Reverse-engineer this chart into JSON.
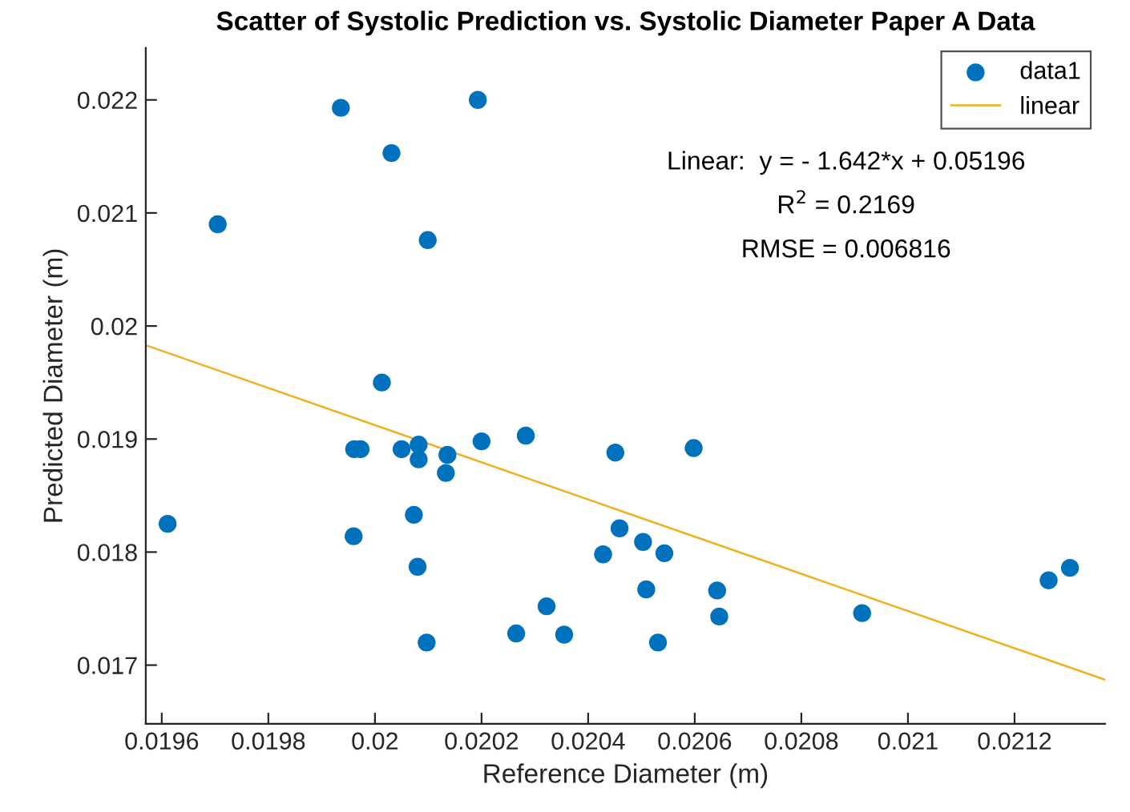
{
  "chart_data": {
    "type": "scatter",
    "title": "Scatter of Systolic Prediction vs. Systolic Diameter Paper A Data",
    "xlabel": "Reference Diameter (m)",
    "ylabel": "Predicted Diameter (m)",
    "annotations": [
      "Linear:  y = - 1.642*x + 0.05196",
      "R$^{2}$ = 0.2169",
      "RMSE = 0.006816"
    ],
    "series": [
      {
        "name": "data1",
        "color": "#0072bd",
        "marker": "circle",
        "x": [
          0.019611,
          0.019705,
          0.019936,
          0.020031,
          0.020193,
          0.020099,
          0.020013,
          0.019961,
          0.019973,
          0.02005,
          0.020082,
          0.020082,
          0.020136,
          0.020133,
          0.0202,
          0.020283,
          0.01996,
          0.020073,
          0.02008,
          0.020097,
          0.020265,
          0.020322,
          0.020355,
          0.020428,
          0.020451,
          0.020598,
          0.020459,
          0.020503,
          0.020543,
          0.020509,
          0.020642,
          0.020646,
          0.020531,
          0.020914,
          0.021264,
          0.021304
        ],
        "values": [
          0.01825,
          0.0209,
          0.02193,
          0.02153,
          0.022,
          0.02076,
          0.0195,
          0.01891,
          0.01891,
          0.01891,
          0.01895,
          0.01882,
          0.01886,
          0.0187,
          0.01898,
          0.01903,
          0.01814,
          0.01833,
          0.01787,
          0.0172,
          0.01728,
          0.01752,
          0.01727,
          0.01798,
          0.01888,
          0.01892,
          0.01821,
          0.01809,
          0.01799,
          0.01767,
          0.01766,
          0.01743,
          0.0172,
          0.01746,
          0.01775,
          0.01786
        ]
      },
      {
        "name": "linear",
        "type": "line",
        "color": "#edb120",
        "marker": "none",
        "line_style": "solid",
        "x": [
          0.01957,
          0.02137
        ],
        "values": [
          0.01983,
          0.01687
        ]
      }
    ],
    "xlim": [
      0.01957,
      0.02137
    ],
    "ylim": [
      0.01648,
      0.02246
    ],
    "xticks": [
      {
        "value": 0.0196,
        "label": "0.0196"
      },
      {
        "value": 0.0198,
        "label": "0.0198"
      },
      {
        "value": 0.02,
        "label": "0.02"
      },
      {
        "value": 0.0202,
        "label": "0.0202"
      },
      {
        "value": 0.0204,
        "label": "0.0204"
      },
      {
        "value": 0.0206,
        "label": "0.0206"
      },
      {
        "value": 0.0208,
        "label": "0.0208"
      },
      {
        "value": 0.021,
        "label": "0.021"
      },
      {
        "value": 0.0212,
        "label": "0.0212"
      }
    ],
    "yticks": [
      {
        "value": 0.017,
        "label": "0.017"
      },
      {
        "value": 0.018,
        "label": "0.018"
      },
      {
        "value": 0.019,
        "label": "0.019"
      },
      {
        "value": 0.02,
        "label": "0.02"
      },
      {
        "value": 0.021,
        "label": "0.021"
      },
      {
        "value": 0.022,
        "label": "0.022"
      }
    ],
    "grid": false,
    "legend": "top right"
  }
}
